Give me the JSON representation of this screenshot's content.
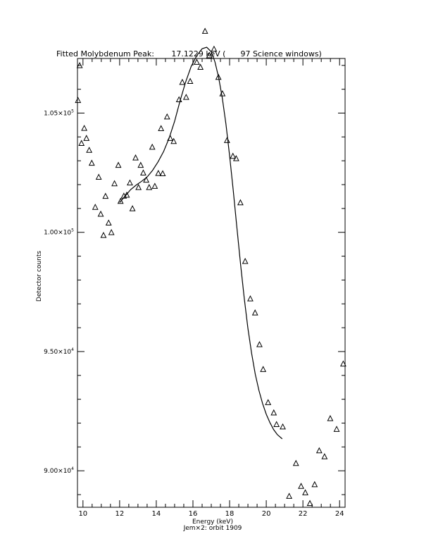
{
  "chart_data": {
    "type": "scatter",
    "title": "Fitted Molybdenum Peak:       17.1229 keV (      97 Science windows)",
    "xlabel": "Energy (keV)",
    "ylabel": "Detector counts",
    "subtitle": "Jem×2: orbit 1909",
    "xlim": [
      9.7,
      24.3
    ],
    "ylim": [
      88470,
      107290
    ],
    "x_ticks": [
      10,
      12,
      14,
      16,
      18,
      20,
      22,
      24
    ],
    "x_tick_labels": [
      "10",
      "12",
      "14",
      "16",
      "18",
      "20",
      "22",
      "24"
    ],
    "y_ticks": [
      90000,
      95000,
      100000,
      105000
    ],
    "y_tick_labels": [
      {
        "mant": "9.00×10",
        "exp": "4"
      },
      {
        "mant": "9.50×10",
        "exp": "4"
      },
      {
        "mant": "1.00×10",
        "exp": "5"
      },
      {
        "mant": "1.05×10",
        "exp": "5"
      }
    ],
    "x_minor_step": 0.5,
    "y_minor_step": 1000,
    "grid": false,
    "series": [
      {
        "marker": "triangle",
        "points": [
          [
            9.73,
            105530
          ],
          [
            9.82,
            106990
          ],
          [
            9.92,
            103730
          ],
          [
            10.07,
            104360
          ],
          [
            10.19,
            103940
          ],
          [
            10.34,
            103440
          ],
          [
            10.48,
            102900
          ],
          [
            10.67,
            101050
          ],
          [
            10.86,
            102310
          ],
          [
            10.97,
            100760
          ],
          [
            11.12,
            99870
          ],
          [
            11.23,
            101510
          ],
          [
            11.4,
            100390
          ],
          [
            11.55,
            99990
          ],
          [
            11.72,
            102040
          ],
          [
            11.93,
            102810
          ],
          [
            12.05,
            101300
          ],
          [
            12.23,
            101520
          ],
          [
            12.39,
            101560
          ],
          [
            12.56,
            102070
          ],
          [
            12.7,
            100990
          ],
          [
            12.87,
            103120
          ],
          [
            13.03,
            101880
          ],
          [
            13.15,
            102810
          ],
          [
            13.29,
            102490
          ],
          [
            13.45,
            102190
          ],
          [
            13.61,
            101880
          ],
          [
            13.78,
            103570
          ],
          [
            13.92,
            101930
          ],
          [
            14.11,
            102470
          ],
          [
            14.26,
            104350
          ],
          [
            14.35,
            102460
          ],
          [
            14.59,
            104840
          ],
          [
            14.76,
            103940
          ],
          [
            14.95,
            103810
          ],
          [
            15.24,
            105560
          ],
          [
            15.42,
            106290
          ],
          [
            15.63,
            105660
          ],
          [
            15.85,
            106330
          ],
          [
            16.21,
            107130
          ],
          [
            16.41,
            106920
          ],
          [
            16.66,
            108430
          ],
          [
            16.89,
            107410
          ],
          [
            17.15,
            107680
          ],
          [
            17.39,
            106500
          ],
          [
            17.61,
            105810
          ],
          [
            17.86,
            103850
          ],
          [
            18.18,
            103190
          ],
          [
            18.36,
            103090
          ],
          [
            18.59,
            101240
          ],
          [
            18.85,
            98780
          ],
          [
            19.13,
            97210
          ],
          [
            19.39,
            96620
          ],
          [
            19.63,
            95290
          ],
          [
            19.83,
            94250
          ],
          [
            20.1,
            92860
          ],
          [
            20.41,
            92430
          ],
          [
            20.56,
            91940
          ],
          [
            20.9,
            91840
          ],
          [
            21.25,
            88930
          ],
          [
            21.62,
            90310
          ],
          [
            21.9,
            89350
          ],
          [
            22.13,
            89080
          ],
          [
            22.38,
            88630
          ],
          [
            22.64,
            89420
          ],
          [
            22.89,
            90840
          ],
          [
            23.18,
            90590
          ],
          [
            23.49,
            92190
          ],
          [
            23.84,
            91740
          ],
          [
            24.2,
            94480
          ]
        ]
      },
      {
        "line": "fit",
        "points": [
          [
            12.0,
            101250
          ],
          [
            12.3,
            101520
          ],
          [
            12.6,
            101790
          ],
          [
            12.9,
            101980
          ],
          [
            13.2,
            102140
          ],
          [
            13.5,
            102320
          ],
          [
            13.8,
            102600
          ],
          [
            14.1,
            102960
          ],
          [
            14.4,
            103390
          ],
          [
            14.7,
            103950
          ],
          [
            15.0,
            104660
          ],
          [
            15.3,
            105520
          ],
          [
            15.6,
            106300
          ],
          [
            15.9,
            106950
          ],
          [
            16.2,
            107400
          ],
          [
            16.5,
            107700
          ],
          [
            16.75,
            107760
          ],
          [
            17.0,
            107570
          ],
          [
            17.2,
            107150
          ],
          [
            17.4,
            106500
          ],
          [
            17.6,
            105640
          ],
          [
            17.8,
            104540
          ],
          [
            18.0,
            103210
          ],
          [
            18.2,
            101750
          ],
          [
            18.4,
            100180
          ],
          [
            18.6,
            98650
          ],
          [
            18.8,
            97230
          ],
          [
            19.0,
            95970
          ],
          [
            19.2,
            94930
          ],
          [
            19.4,
            94050
          ],
          [
            19.6,
            93370
          ],
          [
            19.8,
            92820
          ],
          [
            20.0,
            92370
          ],
          [
            20.2,
            92020
          ],
          [
            20.4,
            91730
          ],
          [
            20.6,
            91520
          ],
          [
            20.87,
            91340
          ]
        ]
      }
    ]
  }
}
